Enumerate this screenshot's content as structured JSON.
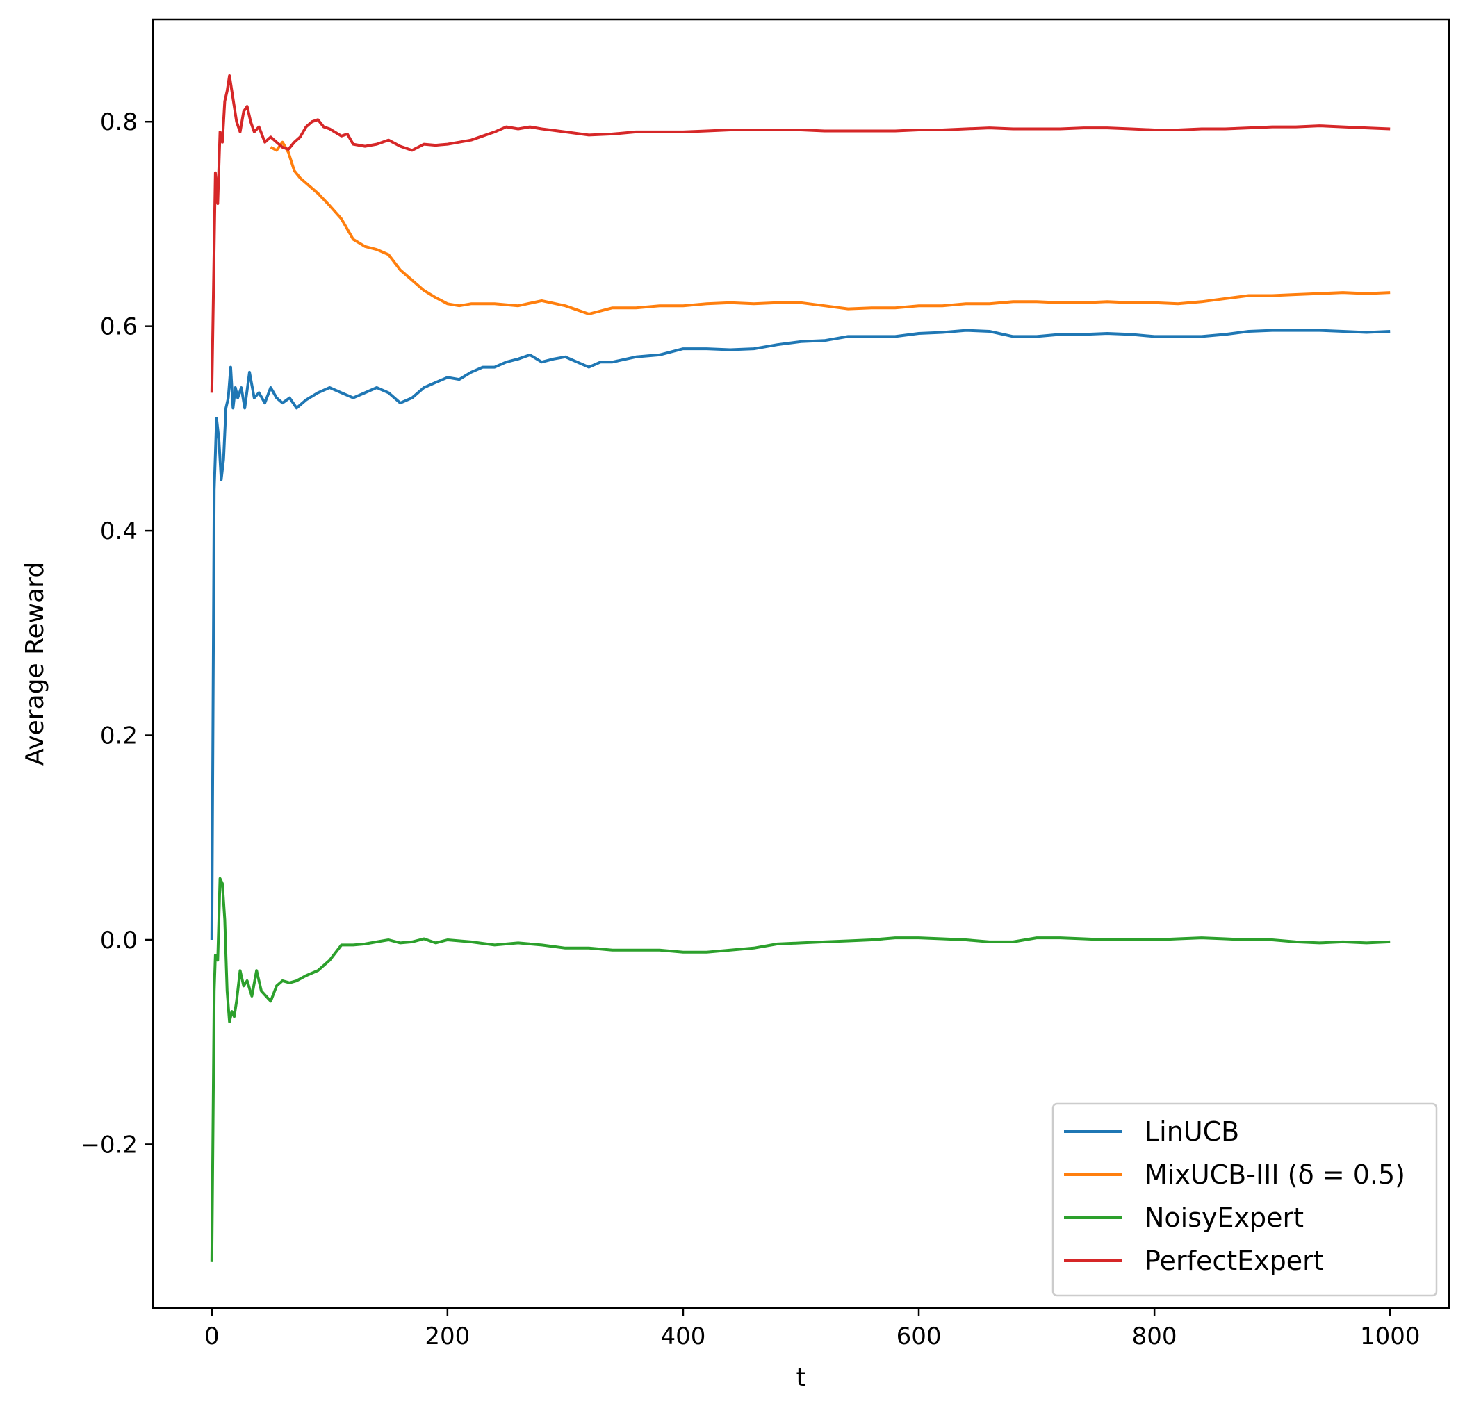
{
  "chart_data": {
    "type": "line",
    "title": "",
    "xlabel": "t",
    "ylabel": "Average Reward",
    "xlim": [
      -50,
      1050
    ],
    "ylim": [
      -0.36,
      0.9
    ],
    "x_ticks": [
      0,
      200,
      400,
      600,
      800,
      1000
    ],
    "y_ticks": [
      -0.2,
      0.0,
      0.2,
      0.4,
      0.6,
      0.8
    ],
    "x_tick_labels": [
      "0",
      "200",
      "400",
      "600",
      "800",
      "1000"
    ],
    "y_tick_labels": [
      "−0.2",
      "0.0",
      "0.2",
      "0.4",
      "0.6",
      "0.8"
    ],
    "grid": false,
    "legend_position": "lower-right",
    "series": [
      {
        "name": "LinUCB",
        "color": "#1f77b4",
        "points": [
          [
            0,
            0.0
          ],
          [
            2,
            0.44
          ],
          [
            4,
            0.51
          ],
          [
            6,
            0.49
          ],
          [
            8,
            0.45
          ],
          [
            10,
            0.47
          ],
          [
            12,
            0.52
          ],
          [
            14,
            0.53
          ],
          [
            16,
            0.56
          ],
          [
            18,
            0.52
          ],
          [
            20,
            0.54
          ],
          [
            22,
            0.53
          ],
          [
            25,
            0.54
          ],
          [
            28,
            0.52
          ],
          [
            32,
            0.555
          ],
          [
            36,
            0.53
          ],
          [
            40,
            0.535
          ],
          [
            45,
            0.525
          ],
          [
            50,
            0.54
          ],
          [
            55,
            0.53
          ],
          [
            60,
            0.525
          ],
          [
            66,
            0.53
          ],
          [
            72,
            0.52
          ],
          [
            80,
            0.528
          ],
          [
            90,
            0.535
          ],
          [
            100,
            0.54
          ],
          [
            110,
            0.535
          ],
          [
            120,
            0.53
          ],
          [
            130,
            0.535
          ],
          [
            140,
            0.54
          ],
          [
            150,
            0.535
          ],
          [
            160,
            0.525
          ],
          [
            170,
            0.53
          ],
          [
            180,
            0.54
          ],
          [
            190,
            0.545
          ],
          [
            200,
            0.55
          ],
          [
            210,
            0.548
          ],
          [
            220,
            0.555
          ],
          [
            230,
            0.56
          ],
          [
            240,
            0.56
          ],
          [
            250,
            0.565
          ],
          [
            260,
            0.568
          ],
          [
            270,
            0.572
          ],
          [
            280,
            0.565
          ],
          [
            290,
            0.568
          ],
          [
            300,
            0.57
          ],
          [
            310,
            0.565
          ],
          [
            320,
            0.56
          ],
          [
            330,
            0.565
          ],
          [
            340,
            0.565
          ],
          [
            360,
            0.57
          ],
          [
            380,
            0.572
          ],
          [
            400,
            0.578
          ],
          [
            420,
            0.578
          ],
          [
            440,
            0.577
          ],
          [
            460,
            0.578
          ],
          [
            480,
            0.582
          ],
          [
            500,
            0.585
          ],
          [
            520,
            0.586
          ],
          [
            540,
            0.59
          ],
          [
            560,
            0.59
          ],
          [
            580,
            0.59
          ],
          [
            600,
            0.593
          ],
          [
            620,
            0.594
          ],
          [
            640,
            0.596
          ],
          [
            660,
            0.595
          ],
          [
            680,
            0.59
          ],
          [
            700,
            0.59
          ],
          [
            720,
            0.592
          ],
          [
            740,
            0.592
          ],
          [
            760,
            0.593
          ],
          [
            780,
            0.592
          ],
          [
            800,
            0.59
          ],
          [
            820,
            0.59
          ],
          [
            840,
            0.59
          ],
          [
            860,
            0.592
          ],
          [
            880,
            0.595
          ],
          [
            900,
            0.596
          ],
          [
            920,
            0.596
          ],
          [
            940,
            0.596
          ],
          [
            960,
            0.595
          ],
          [
            980,
            0.594
          ],
          [
            1000,
            0.595
          ]
        ]
      },
      {
        "name": "MixUCB-III (δ = 0.5)",
        "color": "#ff7f0e",
        "points": [
          [
            50,
            0.775
          ],
          [
            55,
            0.772
          ],
          [
            60,
            0.78
          ],
          [
            65,
            0.77
          ],
          [
            70,
            0.752
          ],
          [
            75,
            0.745
          ],
          [
            80,
            0.74
          ],
          [
            90,
            0.73
          ],
          [
            100,
            0.718
          ],
          [
            110,
            0.705
          ],
          [
            120,
            0.685
          ],
          [
            130,
            0.678
          ],
          [
            140,
            0.675
          ],
          [
            150,
            0.67
          ],
          [
            160,
            0.655
          ],
          [
            170,
            0.645
          ],
          [
            180,
            0.635
          ],
          [
            190,
            0.628
          ],
          [
            200,
            0.622
          ],
          [
            210,
            0.62
          ],
          [
            220,
            0.622
          ],
          [
            240,
            0.622
          ],
          [
            260,
            0.62
          ],
          [
            280,
            0.625
          ],
          [
            300,
            0.62
          ],
          [
            320,
            0.612
          ],
          [
            340,
            0.618
          ],
          [
            360,
            0.618
          ],
          [
            380,
            0.62
          ],
          [
            400,
            0.62
          ],
          [
            420,
            0.622
          ],
          [
            440,
            0.623
          ],
          [
            460,
            0.622
          ],
          [
            480,
            0.623
          ],
          [
            500,
            0.623
          ],
          [
            520,
            0.62
          ],
          [
            540,
            0.617
          ],
          [
            560,
            0.618
          ],
          [
            580,
            0.618
          ],
          [
            600,
            0.62
          ],
          [
            620,
            0.62
          ],
          [
            640,
            0.622
          ],
          [
            660,
            0.622
          ],
          [
            680,
            0.624
          ],
          [
            700,
            0.624
          ],
          [
            720,
            0.623
          ],
          [
            740,
            0.623
          ],
          [
            760,
            0.624
          ],
          [
            780,
            0.623
          ],
          [
            800,
            0.623
          ],
          [
            820,
            0.622
          ],
          [
            840,
            0.624
          ],
          [
            860,
            0.627
          ],
          [
            880,
            0.63
          ],
          [
            900,
            0.63
          ],
          [
            920,
            0.631
          ],
          [
            940,
            0.632
          ],
          [
            960,
            0.633
          ],
          [
            980,
            0.632
          ],
          [
            1000,
            0.633
          ]
        ]
      },
      {
        "name": "NoisyExpert",
        "color": "#2ca02c",
        "points": [
          [
            0,
            -0.315
          ],
          [
            2,
            -0.05
          ],
          [
            3,
            -0.015
          ],
          [
            5,
            -0.02
          ],
          [
            7,
            0.06
          ],
          [
            9,
            0.055
          ],
          [
            11,
            0.02
          ],
          [
            13,
            -0.05
          ],
          [
            15,
            -0.08
          ],
          [
            17,
            -0.07
          ],
          [
            19,
            -0.075
          ],
          [
            21,
            -0.06
          ],
          [
            24,
            -0.03
          ],
          [
            27,
            -0.045
          ],
          [
            30,
            -0.04
          ],
          [
            34,
            -0.055
          ],
          [
            38,
            -0.03
          ],
          [
            42,
            -0.05
          ],
          [
            46,
            -0.055
          ],
          [
            50,
            -0.06
          ],
          [
            55,
            -0.045
          ],
          [
            60,
            -0.04
          ],
          [
            66,
            -0.042
          ],
          [
            72,
            -0.04
          ],
          [
            80,
            -0.035
          ],
          [
            90,
            -0.03
          ],
          [
            100,
            -0.02
          ],
          [
            110,
            -0.005
          ],
          [
            120,
            -0.005
          ],
          [
            130,
            -0.004
          ],
          [
            140,
            -0.002
          ],
          [
            150,
            0.0
          ],
          [
            160,
            -0.003
          ],
          [
            170,
            -0.002
          ],
          [
            180,
            0.001
          ],
          [
            190,
            -0.003
          ],
          [
            200,
            0.0
          ],
          [
            220,
            -0.002
          ],
          [
            240,
            -0.005
          ],
          [
            260,
            -0.003
          ],
          [
            280,
            -0.005
          ],
          [
            300,
            -0.008
          ],
          [
            320,
            -0.008
          ],
          [
            340,
            -0.01
          ],
          [
            360,
            -0.01
          ],
          [
            380,
            -0.01
          ],
          [
            400,
            -0.012
          ],
          [
            420,
            -0.012
          ],
          [
            440,
            -0.01
          ],
          [
            460,
            -0.008
          ],
          [
            480,
            -0.004
          ],
          [
            500,
            -0.003
          ],
          [
            520,
            -0.002
          ],
          [
            540,
            -0.001
          ],
          [
            560,
            0.0
          ],
          [
            580,
            0.002
          ],
          [
            600,
            0.002
          ],
          [
            620,
            0.001
          ],
          [
            640,
            0.0
          ],
          [
            660,
            -0.002
          ],
          [
            680,
            -0.002
          ],
          [
            700,
            0.002
          ],
          [
            720,
            0.002
          ],
          [
            740,
            0.001
          ],
          [
            760,
            0.0
          ],
          [
            780,
            0.0
          ],
          [
            800,
            0.0
          ],
          [
            820,
            0.001
          ],
          [
            840,
            0.002
          ],
          [
            860,
            0.001
          ],
          [
            880,
            0.0
          ],
          [
            900,
            0.0
          ],
          [
            920,
            -0.002
          ],
          [
            940,
            -0.003
          ],
          [
            960,
            -0.002
          ],
          [
            980,
            -0.003
          ],
          [
            1000,
            -0.002
          ]
        ]
      },
      {
        "name": "PerfectExpert",
        "color": "#d62728",
        "points": [
          [
            0,
            0.535
          ],
          [
            2,
            0.68
          ],
          [
            3,
            0.75
          ],
          [
            5,
            0.72
          ],
          [
            7,
            0.79
          ],
          [
            9,
            0.78
          ],
          [
            11,
            0.82
          ],
          [
            13,
            0.83
          ],
          [
            15,
            0.845
          ],
          [
            17,
            0.83
          ],
          [
            19,
            0.815
          ],
          [
            21,
            0.8
          ],
          [
            24,
            0.79
          ],
          [
            27,
            0.81
          ],
          [
            30,
            0.815
          ],
          [
            33,
            0.8
          ],
          [
            36,
            0.79
          ],
          [
            40,
            0.795
          ],
          [
            45,
            0.78
          ],
          [
            50,
            0.785
          ],
          [
            55,
            0.78
          ],
          [
            60,
            0.775
          ],
          [
            65,
            0.773
          ],
          [
            70,
            0.78
          ],
          [
            75,
            0.785
          ],
          [
            80,
            0.795
          ],
          [
            85,
            0.8
          ],
          [
            90,
            0.802
          ],
          [
            95,
            0.795
          ],
          [
            100,
            0.793
          ],
          [
            110,
            0.786
          ],
          [
            115,
            0.788
          ],
          [
            120,
            0.778
          ],
          [
            130,
            0.776
          ],
          [
            140,
            0.778
          ],
          [
            150,
            0.782
          ],
          [
            160,
            0.776
          ],
          [
            170,
            0.772
          ],
          [
            180,
            0.778
          ],
          [
            190,
            0.777
          ],
          [
            200,
            0.778
          ],
          [
            210,
            0.78
          ],
          [
            220,
            0.782
          ],
          [
            230,
            0.786
          ],
          [
            240,
            0.79
          ],
          [
            250,
            0.795
          ],
          [
            260,
            0.793
          ],
          [
            270,
            0.795
          ],
          [
            280,
            0.793
          ],
          [
            300,
            0.79
          ],
          [
            320,
            0.787
          ],
          [
            340,
            0.788
          ],
          [
            360,
            0.79
          ],
          [
            380,
            0.79
          ],
          [
            400,
            0.79
          ],
          [
            420,
            0.791
          ],
          [
            440,
            0.792
          ],
          [
            460,
            0.792
          ],
          [
            480,
            0.792
          ],
          [
            500,
            0.792
          ],
          [
            520,
            0.791
          ],
          [
            540,
            0.791
          ],
          [
            560,
            0.791
          ],
          [
            580,
            0.791
          ],
          [
            600,
            0.792
          ],
          [
            620,
            0.792
          ],
          [
            640,
            0.793
          ],
          [
            660,
            0.794
          ],
          [
            680,
            0.793
          ],
          [
            700,
            0.793
          ],
          [
            720,
            0.793
          ],
          [
            740,
            0.794
          ],
          [
            760,
            0.794
          ],
          [
            780,
            0.793
          ],
          [
            800,
            0.792
          ],
          [
            820,
            0.792
          ],
          [
            840,
            0.793
          ],
          [
            860,
            0.793
          ],
          [
            880,
            0.794
          ],
          [
            900,
            0.795
          ],
          [
            920,
            0.795
          ],
          [
            940,
            0.796
          ],
          [
            960,
            0.795
          ],
          [
            980,
            0.794
          ],
          [
            1000,
            0.793
          ]
        ]
      }
    ]
  }
}
